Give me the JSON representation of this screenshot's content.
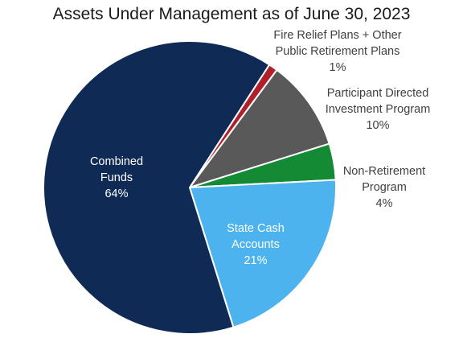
{
  "chart_data": {
    "type": "pie",
    "title": "Assets Under Management as of June 30, 2023",
    "slices": [
      {
        "id": "fire-relief",
        "label_lines": [
          "Fire Relief Plans + Other",
          "Public Retirement Plans",
          "1%"
        ],
        "value": 1,
        "color": "#b0202a",
        "text_color": "#404040"
      },
      {
        "id": "participant-directed",
        "label_lines": [
          "Participant Directed",
          "Investment Program",
          "10%"
        ],
        "value": 10,
        "color": "#595959",
        "text_color": "#404040"
      },
      {
        "id": "non-retirement",
        "label_lines": [
          "Non-Retirement",
          "Program",
          "4%"
        ],
        "value": 4,
        "color": "#148a35",
        "text_color": "#404040"
      },
      {
        "id": "state-cash",
        "label_lines": [
          "State Cash",
          "Accounts",
          "21%"
        ],
        "value": 21,
        "color": "#4cb3ee",
        "text_color": "#ffffff"
      },
      {
        "id": "combined-funds",
        "label_lines": [
          "Combined",
          "Funds",
          "64%"
        ],
        "value": 64,
        "color": "#0e2a55",
        "text_color": "#ffffff"
      }
    ],
    "legend": "none"
  }
}
